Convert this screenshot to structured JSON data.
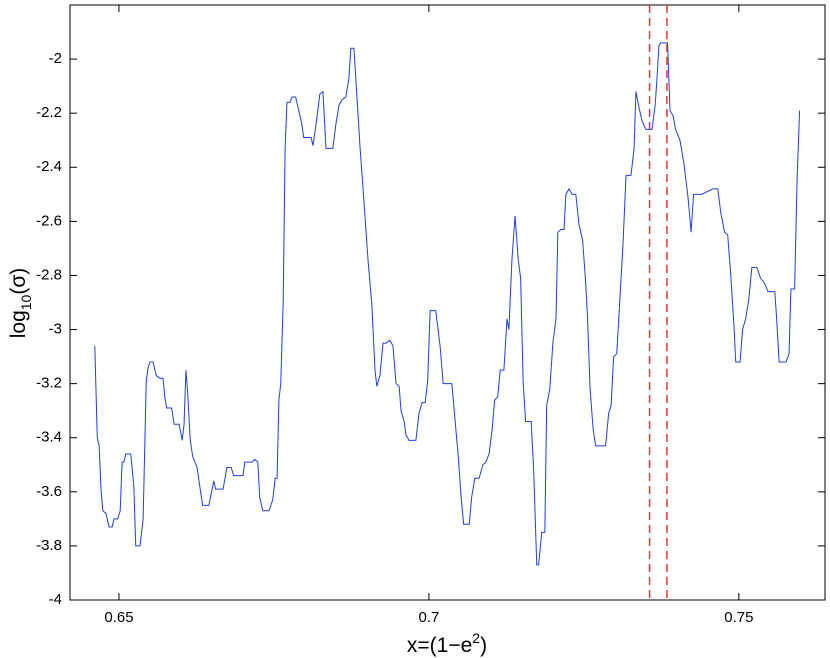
{
  "chart_data": {
    "type": "line",
    "xlabel": [
      "x=(1−e",
      "2",
      ")"
    ],
    "ylabel": [
      "log",
      "10",
      "(σ)"
    ],
    "color": "#1f3fe6",
    "vlines": [
      0.7356,
      0.7384
    ],
    "vline_color": "#e8363c",
    "xlim": [
      0.6421,
      0.7639
    ],
    "ylim": [
      -4,
      -1.8
    ],
    "xticks": [
      0.65,
      0.7,
      0.75
    ],
    "yticks": [
      -4,
      -3.8,
      -3.6,
      -3.4,
      -3.2,
      -3,
      -2.8,
      -2.6,
      -2.4,
      -2.2,
      -2
    ],
    "x": [
      0.6461,
      0.6465,
      0.6468,
      0.6471,
      0.6474,
      0.6479,
      0.6484,
      0.6489,
      0.6492,
      0.6498,
      0.6502,
      0.6505,
      0.6508,
      0.6511,
      0.6519,
      0.6524,
      0.6527,
      0.6534,
      0.6539,
      0.6544,
      0.6547,
      0.655,
      0.6555,
      0.656,
      0.6566,
      0.6571,
      0.6574,
      0.6577,
      0.6585,
      0.6589,
      0.6597,
      0.6602,
      0.6605,
      0.6608,
      0.6611,
      0.6615,
      0.6619,
      0.6626,
      0.6631,
      0.6635,
      0.6645,
      0.6653,
      0.6656,
      0.6668,
      0.6674,
      0.6681,
      0.6685,
      0.67,
      0.6703,
      0.6715,
      0.6719,
      0.6724,
      0.6727,
      0.6732,
      0.6742,
      0.6748,
      0.6752,
      0.6755,
      0.6758,
      0.6761,
      0.6765,
      0.6768,
      0.6771,
      0.6776,
      0.6779,
      0.6785,
      0.6795,
      0.6798,
      0.681,
      0.6813,
      0.6818,
      0.6824,
      0.6829,
      0.6834,
      0.6845,
      0.685,
      0.6855,
      0.686,
      0.6866,
      0.6871,
      0.6874,
      0.6879,
      0.6882,
      0.6889,
      0.6895,
      0.6902,
      0.6908,
      0.6913,
      0.6916,
      0.6921,
      0.6926,
      0.6931,
      0.6937,
      0.6942,
      0.6947,
      0.6952,
      0.6955,
      0.696,
      0.6963,
      0.6968,
      0.6979,
      0.6984,
      0.6989,
      0.6994,
      0.6998,
      0.7002,
      0.7011,
      0.7018,
      0.7023,
      0.7027,
      0.7037,
      0.7042,
      0.7047,
      0.7052,
      0.7056,
      0.7065,
      0.7069,
      0.7074,
      0.7081,
      0.7087,
      0.7092,
      0.7097,
      0.7102,
      0.7106,
      0.7111,
      0.7115,
      0.7121,
      0.7126,
      0.7129,
      0.7134,
      0.7139,
      0.7144,
      0.7148,
      0.7152,
      0.7156,
      0.7165,
      0.7169,
      0.7174,
      0.7177,
      0.7182,
      0.7187,
      0.719,
      0.7195,
      0.72,
      0.7205,
      0.7208,
      0.7213,
      0.7218,
      0.7221,
      0.7226,
      0.7231,
      0.7237,
      0.7242,
      0.7248,
      0.7253,
      0.7256,
      0.726,
      0.7265,
      0.7269,
      0.7285,
      0.729,
      0.7294,
      0.7298,
      0.7303,
      0.7308,
      0.7313,
      0.7318,
      0.7326,
      0.7331,
      0.7334,
      0.7339,
      0.7344,
      0.735,
      0.736,
      0.7365,
      0.7368,
      0.7371,
      0.7374,
      0.7385,
      0.7389,
      0.7394,
      0.7398,
      0.7405,
      0.7411,
      0.7418,
      0.7423,
      0.7427,
      0.744,
      0.7458,
      0.7466,
      0.7471,
      0.7477,
      0.7482,
      0.7487,
      0.7492,
      0.7495,
      0.7502,
      0.7506,
      0.7511,
      0.7516,
      0.7521,
      0.7529,
      0.7535,
      0.7542,
      0.7547,
      0.7558,
      0.7561,
      0.7565,
      0.7576,
      0.7581,
      0.7584,
      0.759,
      0.7594,
      0.7598
    ],
    "values": [
      -3.06,
      -3.4,
      -3.43,
      -3.59,
      -3.67,
      -3.68,
      -3.73,
      -3.73,
      -3.7,
      -3.7,
      -3.67,
      -3.49,
      -3.49,
      -3.46,
      -3.46,
      -3.58,
      -3.8,
      -3.8,
      -3.7,
      -3.19,
      -3.14,
      -3.12,
      -3.12,
      -3.17,
      -3.18,
      -3.18,
      -3.25,
      -3.29,
      -3.29,
      -3.35,
      -3.35,
      -3.41,
      -3.35,
      -3.15,
      -3.24,
      -3.41,
      -3.47,
      -3.51,
      -3.59,
      -3.65,
      -3.65,
      -3.56,
      -3.59,
      -3.59,
      -3.51,
      -3.51,
      -3.54,
      -3.54,
      -3.49,
      -3.49,
      -3.48,
      -3.49,
      -3.62,
      -3.67,
      -3.67,
      -3.63,
      -3.55,
      -3.55,
      -3.26,
      -3.2,
      -2.89,
      -2.33,
      -2.16,
      -2.16,
      -2.14,
      -2.14,
      -2.24,
      -2.29,
      -2.29,
      -2.32,
      -2.24,
      -2.13,
      -2.12,
      -2.33,
      -2.33,
      -2.24,
      -2.17,
      -2.15,
      -2.14,
      -2.07,
      -1.96,
      -1.96,
      -2.07,
      -2.33,
      -2.52,
      -2.75,
      -2.91,
      -3.15,
      -3.21,
      -3.17,
      -3.05,
      -3.05,
      -3.04,
      -3.06,
      -3.2,
      -3.21,
      -3.3,
      -3.34,
      -3.39,
      -3.41,
      -3.41,
      -3.31,
      -3.27,
      -3.27,
      -3.19,
      -2.93,
      -2.93,
      -3.06,
      -3.2,
      -3.2,
      -3.2,
      -3.33,
      -3.46,
      -3.62,
      -3.72,
      -3.72,
      -3.62,
      -3.55,
      -3.55,
      -3.5,
      -3.49,
      -3.46,
      -3.37,
      -3.26,
      -3.25,
      -3.15,
      -3.15,
      -2.96,
      -3.0,
      -2.74,
      -2.58,
      -2.74,
      -2.81,
      -3.19,
      -3.34,
      -3.34,
      -3.52,
      -3.87,
      -3.87,
      -3.75,
      -3.75,
      -3.28,
      -3.22,
      -3.05,
      -2.96,
      -2.64,
      -2.63,
      -2.63,
      -2.5,
      -2.48,
      -2.5,
      -2.5,
      -2.61,
      -2.67,
      -2.83,
      -2.96,
      -3.22,
      -3.37,
      -3.43,
      -3.43,
      -3.31,
      -3.28,
      -3.1,
      -3.09,
      -2.89,
      -2.69,
      -2.43,
      -2.43,
      -2.33,
      -2.12,
      -2.18,
      -2.23,
      -2.26,
      -2.26,
      -2.17,
      -2.07,
      -1.95,
      -1.94,
      -1.94,
      -2.19,
      -2.21,
      -2.26,
      -2.3,
      -2.38,
      -2.51,
      -2.64,
      -2.5,
      -2.5,
      -2.48,
      -2.48,
      -2.57,
      -2.64,
      -2.65,
      -2.8,
      -2.98,
      -3.12,
      -3.12,
      -3.0,
      -2.96,
      -2.89,
      -2.77,
      -2.77,
      -2.81,
      -2.83,
      -2.86,
      -2.86,
      -2.96,
      -3.12,
      -3.12,
      -3.09,
      -2.85,
      -2.85,
      -2.44,
      -2.19
    ]
  }
}
